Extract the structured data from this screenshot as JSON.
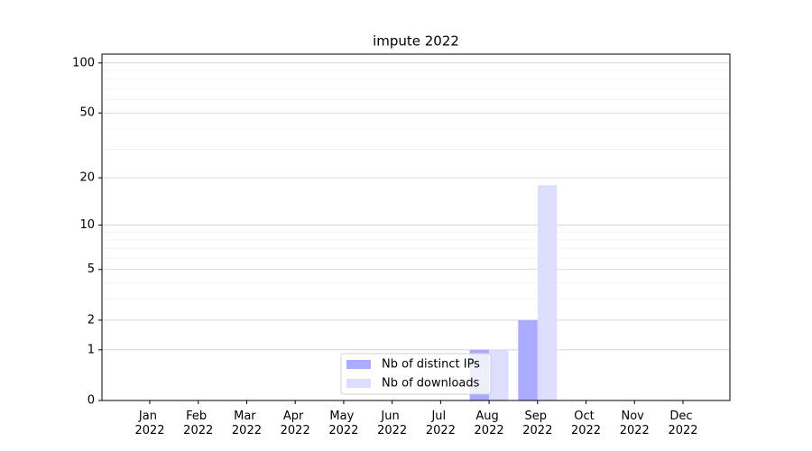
{
  "chart_data": {
    "type": "bar",
    "title": "impute 2022",
    "categories": [
      "Jan 2022",
      "Feb 2022",
      "Mar 2022",
      "Apr 2022",
      "May 2022",
      "Jun 2022",
      "Jul 2022",
      "Aug 2022",
      "Sep 2022",
      "Oct 2022",
      "Nov 2022",
      "Dec 2022"
    ],
    "series": [
      {
        "name": "Nb of distinct IPs",
        "color": "#aaaaff",
        "values": [
          0,
          0,
          0,
          0,
          0,
          0,
          0,
          1,
          2,
          0,
          0,
          0
        ]
      },
      {
        "name": "Nb of downloads",
        "color": "#ddddff",
        "values": [
          0,
          0,
          0,
          0,
          0,
          0,
          0,
          1,
          18,
          0,
          0,
          0
        ]
      }
    ],
    "yscale": "log1p",
    "ylim": [
      0,
      113
    ],
    "yticks": [
      0,
      1,
      2,
      5,
      10,
      20,
      50,
      100
    ],
    "yminorticks": [
      3,
      4,
      6,
      7,
      8,
      9,
      30,
      40,
      60,
      70,
      80,
      90
    ],
    "grid": true,
    "legend": "lower center"
  }
}
